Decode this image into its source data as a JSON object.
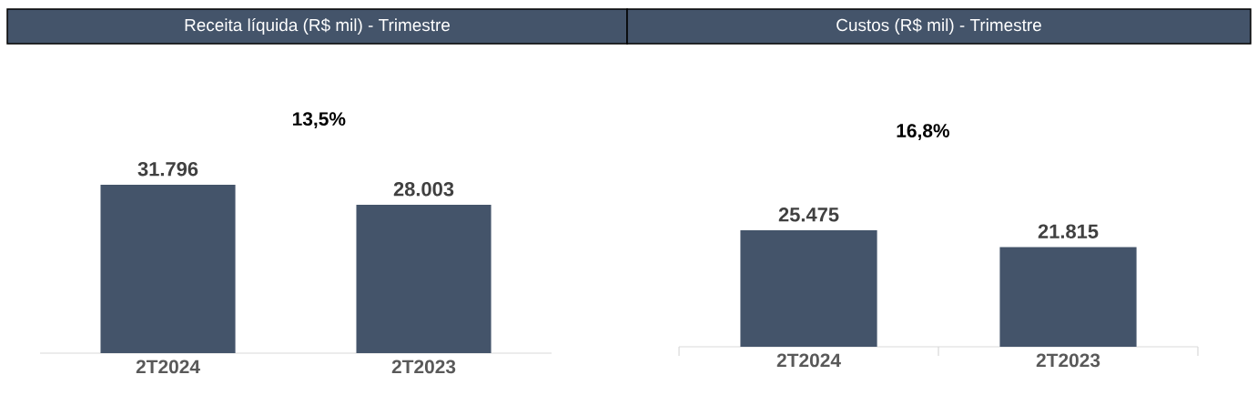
{
  "chart_data": [
    {
      "type": "bar",
      "title": "Receita líquida (R$ mil) - Trimestre",
      "categories": [
        "2T2024",
        "2T2023"
      ],
      "values": [
        31796,
        28003
      ],
      "value_labels": [
        "31.796",
        "28.003"
      ],
      "color": "#44546a",
      "annotations": [
        "13,5%"
      ]
    },
    {
      "type": "bar",
      "title": "Custos (R$ mil) - Trimestre",
      "categories": [
        "2T2024",
        "2T2023"
      ],
      "values": [
        25475,
        21815
      ],
      "value_labels": [
        "25.475",
        "21.815"
      ],
      "color": "#44546a",
      "annotations": [
        "16,8%"
      ]
    }
  ]
}
